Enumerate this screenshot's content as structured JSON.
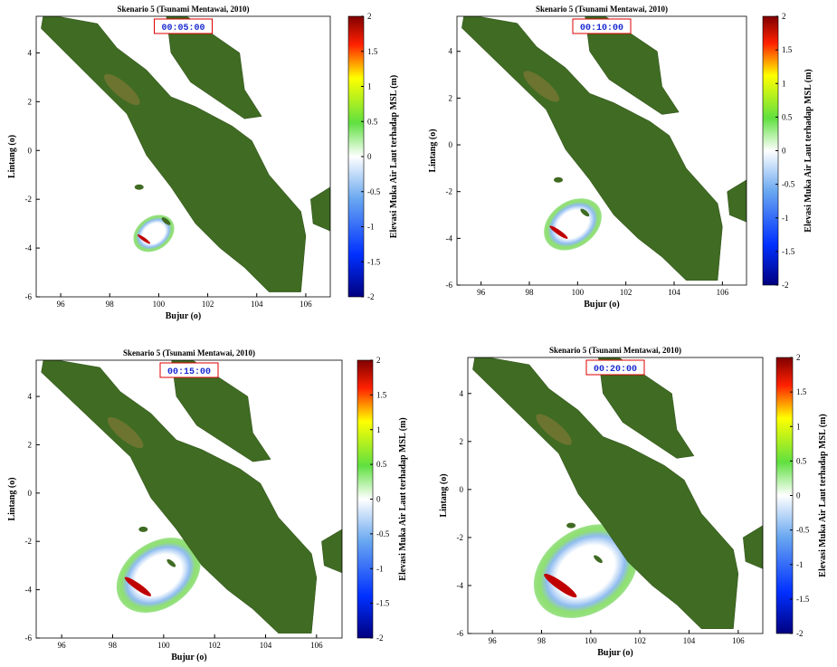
{
  "panels": [
    {
      "title": "Skenario 5 (Tsunami Mentawai, 2010)",
      "time": "00:05:00",
      "x_label": "Bujur (o)",
      "y_label": "Lintang (o)",
      "xlim": [
        95,
        107
      ],
      "ylim": [
        -6,
        5.5
      ],
      "xticks": [
        96,
        98,
        100,
        102,
        104,
        106
      ],
      "yticks": [
        -6,
        -4,
        -2,
        0,
        2,
        4
      ],
      "colorbar": {
        "label": "Elevasi Muka Air Laut terhadap MSL (m)",
        "lim": [
          -2,
          2
        ],
        "ticks": [
          -2,
          -1.5,
          -1,
          -0.5,
          0,
          0.5,
          1,
          1.5,
          2
        ]
      }
    },
    {
      "title": "Skenario 5 (Tsunami Mentawai, 2010)",
      "time": "00:10:00",
      "x_label": "Bujur (o)",
      "y_label": "Lintang (o)",
      "xlim": [
        95,
        107
      ],
      "ylim": [
        -6,
        5.5
      ],
      "xticks": [
        96,
        98,
        100,
        102,
        104,
        106
      ],
      "yticks": [
        -6,
        -4,
        -2,
        0,
        2,
        4
      ],
      "colorbar": {
        "label": "Elevasi Muka Air Laut terhadap MSL (m)",
        "lim": [
          -2,
          2
        ],
        "ticks": [
          -2,
          -1.5,
          -1,
          -0.5,
          0,
          0.5,
          1,
          1.5,
          2
        ]
      }
    },
    {
      "title": "Skenario 5 (Tsunami Mentawai, 2010)",
      "time": "00:15:00",
      "x_label": "Bujur (o)",
      "y_label": "Lintang (o)",
      "xlim": [
        95,
        107
      ],
      "ylim": [
        -6,
        5.5
      ],
      "xticks": [
        96,
        98,
        100,
        102,
        104,
        106
      ],
      "yticks": [
        -6,
        -4,
        -2,
        0,
        2,
        4
      ],
      "colorbar": {
        "label": "Elevasi Muka Air Laut terhadap MSL (m)",
        "lim": [
          -2,
          2
        ],
        "ticks": [
          -2,
          -1.5,
          -1,
          -0.5,
          0,
          0.5,
          1,
          1.5,
          2
        ]
      }
    },
    {
      "title": "Skenario 5 (Tsunami Mentawai, 2010)",
      "time": "00:20:00",
      "x_label": "Bujur (o)",
      "y_label": "Lintang (o)",
      "xlim": [
        95,
        107
      ],
      "ylim": [
        -6,
        5.5
      ],
      "xticks": [
        96,
        98,
        100,
        102,
        104,
        106
      ],
      "yticks": [
        -6,
        -4,
        -2,
        0,
        2,
        4
      ],
      "colorbar": {
        "label": "Elevasi Muka Air Laut terhadap MSL (m)",
        "lim": [
          -2,
          2
        ],
        "ticks": [
          -2,
          -1.5,
          -1,
          -0.5,
          0,
          0.5,
          1,
          1.5,
          2
        ]
      }
    }
  ]
}
